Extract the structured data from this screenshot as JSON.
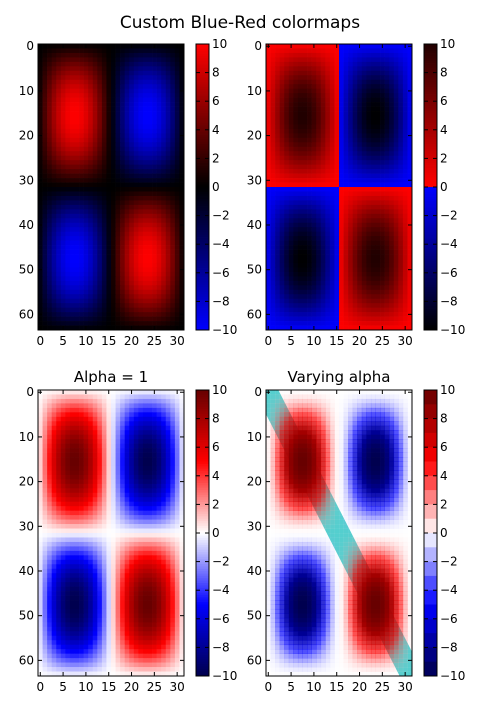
{
  "figure": {
    "title": "Custom Blue-Red colormaps"
  },
  "chart_data": [
    {
      "type": "heatmap",
      "panel": "top-left",
      "title": "",
      "xlabel": "",
      "ylabel": "",
      "x_ticks": [
        "0",
        "5",
        "10",
        "15",
        "20",
        "25",
        "30"
      ],
      "y_ticks": [
        "0",
        "10",
        "20",
        "30",
        "40",
        "50",
        "60"
      ],
      "x_range": [
        0,
        32
      ],
      "y_range": [
        0,
        64
      ],
      "pattern": "quadrants: red top-left and bottom-right, blue top-right and bottom-left; values up to about 10 in magnitude, strongest near the center of each quadrant",
      "colormap": {
        "name": "blue-black-red",
        "stops": [
          {
            "v": -10,
            "color": "#0000ff"
          },
          {
            "v": 0,
            "color": "#000000"
          },
          {
            "v": 10,
            "color": "#ff0000"
          }
        ]
      },
      "colorbar": {
        "range": [
          -10,
          10
        ],
        "ticks": [
          "10",
          "8",
          "6",
          "4",
          "2",
          "0",
          "−2",
          "−4",
          "−6",
          "−8",
          "−10"
        ]
      }
    },
    {
      "type": "heatmap",
      "panel": "top-right",
      "title": "",
      "xlabel": "",
      "ylabel": "",
      "x_ticks": [
        "0",
        "5",
        "10",
        "15",
        "20",
        "25",
        "30"
      ],
      "y_ticks": [
        "0",
        "10",
        "20",
        "30",
        "40",
        "50",
        "60"
      ],
      "x_range": [
        0,
        32
      ],
      "y_range": [
        0,
        64
      ],
      "pattern": "quadrants: red top-left and bottom-right, blue top-right and bottom-left; sharp change of colour at 0",
      "colormap": {
        "name": "black-blue / red-black",
        "stops": [
          {
            "v": -10,
            "color": "#000000"
          },
          {
            "v": 0,
            "color": "#0000ff"
          },
          {
            "v": 0,
            "color": "#ff0000"
          },
          {
            "v": 10,
            "color": "#200000"
          }
        ]
      },
      "colorbar": {
        "range": [
          -10,
          10
        ],
        "ticks": [
          "10",
          "8",
          "6",
          "4",
          "2",
          "0",
          "−2",
          "−4",
          "−6",
          "−8",
          "−10"
        ]
      }
    },
    {
      "type": "heatmap",
      "panel": "bottom-left",
      "title": "Alpha = 1",
      "xlabel": "",
      "ylabel": "",
      "x_ticks": [
        "0",
        "5",
        "10",
        "15",
        "20",
        "25",
        "30"
      ],
      "y_ticks": [
        "0",
        "10",
        "20",
        "30",
        "40",
        "50",
        "60"
      ],
      "x_range": [
        0,
        32
      ],
      "y_range": [
        0,
        64
      ],
      "pattern": "quadrants: red top-left and bottom-right, blue top-right and bottom-left; near-white around 0",
      "colormap": {
        "name": "dark blue - blue - white - red - dark red",
        "stops": [
          {
            "v": -10,
            "color": "#00004d"
          },
          {
            "v": -5,
            "color": "#0000ff"
          },
          {
            "v": 0,
            "color": "#ffffff"
          },
          {
            "v": 5,
            "color": "#ff0000"
          },
          {
            "v": 10,
            "color": "#660000"
          }
        ]
      },
      "colorbar": {
        "range": [
          -10,
          10
        ],
        "ticks": [
          "10",
          "8",
          "6",
          "4",
          "2",
          "0",
          "−2",
          "−4",
          "−6",
          "−8",
          "−10"
        ]
      }
    },
    {
      "type": "heatmap",
      "panel": "bottom-right",
      "title": "Varying alpha",
      "xlabel": "",
      "ylabel": "",
      "x_ticks": [
        "0",
        "5",
        "10",
        "15",
        "20",
        "25",
        "30"
      ],
      "y_ticks": [
        "0",
        "10",
        "20",
        "30",
        "40",
        "50",
        "60"
      ],
      "x_range": [
        0,
        32
      ],
      "y_range": [
        0,
        64
      ],
      "pattern": "same quadrant field, washed out toward white where |value| is small; a thick cyan diagonal line drawn behind the image from top-left to bottom-right",
      "overlay_line": {
        "color": "#3cc8c8",
        "from": [
          0,
          0
        ],
        "to": [
          32,
          64
        ]
      },
      "colormap": {
        "name": "same as Alpha = 1, with transparency increasing toward 0",
        "stops": [
          {
            "v": -10,
            "color": "#00004d"
          },
          {
            "v": -5,
            "color": "#0000ff"
          },
          {
            "v": 0,
            "color": "#ffffff"
          },
          {
            "v": 5,
            "color": "#ff0000"
          },
          {
            "v": 10,
            "color": "#660000"
          }
        ]
      },
      "colorbar": {
        "range": [
          -10,
          10
        ],
        "banded": true,
        "ticks": [
          "10",
          "8",
          "6",
          "4",
          "2",
          "0",
          "−2",
          "−4",
          "−6",
          "−8",
          "−10"
        ]
      }
    }
  ]
}
